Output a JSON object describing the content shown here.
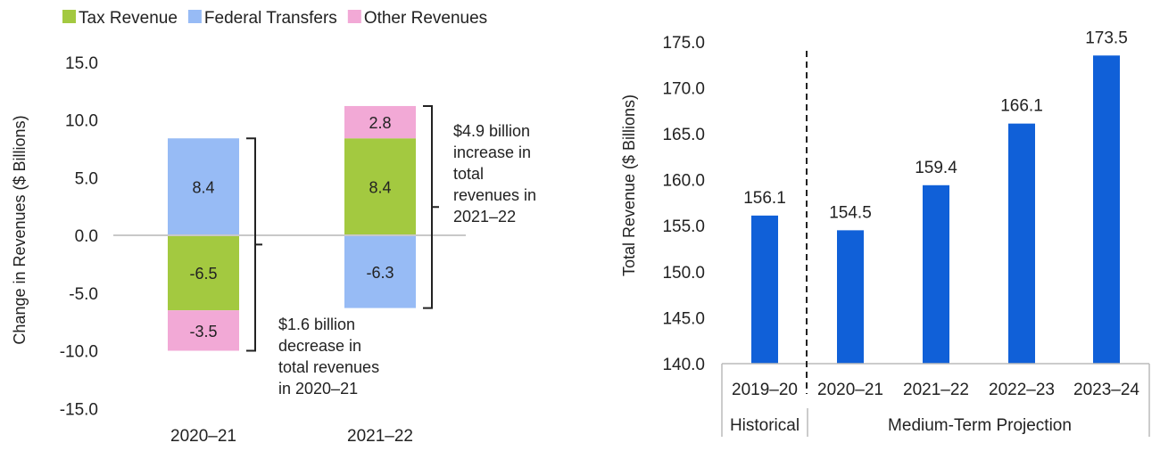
{
  "chart_data": [
    {
      "type": "bar",
      "stacked": true,
      "categories": [
        "2020–21",
        "2021–22"
      ],
      "series": [
        {
          "name": "Tax Revenue",
          "color": "#a3c940",
          "values": [
            -6.5,
            8.4
          ]
        },
        {
          "name": "Federal Transfers",
          "color": "#97bbf5",
          "values": [
            8.4,
            -6.3
          ]
        },
        {
          "name": "Other Revenues",
          "color": "#f2a9d6",
          "values": [
            -3.5,
            2.8
          ]
        }
      ],
      "ylabel": "Change in Revenues ($ Billions)",
      "ylim": [
        -15,
        15
      ],
      "yticks": [
        "15.0",
        "10.0",
        "5.0",
        "0.0",
        "-5.0",
        "-10.0",
        "-15.0"
      ],
      "legend_position": "top-left",
      "annotations": [
        {
          "category": "2020–21",
          "lines": [
            "$1.6 billion",
            "decrease in",
            "total revenues",
            "in 2020–21"
          ]
        },
        {
          "category": "2021–22",
          "lines": [
            "$4.9 billion",
            "increase in",
            "total",
            "revenues in",
            "2021–22"
          ]
        }
      ]
    },
    {
      "type": "bar",
      "categories": [
        "2019–20",
        "2020–21",
        "2021–22",
        "2022–23",
        "2023–24"
      ],
      "values": [
        156.1,
        154.5,
        159.4,
        166.1,
        173.5
      ],
      "value_labels": [
        "156.1",
        "154.5",
        "159.4",
        "166.1",
        "173.5"
      ],
      "color": "#1060d8",
      "ylabel": "Total Revenue ($ Billions)",
      "ylim": [
        140,
        175
      ],
      "yticks": [
        "175.0",
        "170.0",
        "165.0",
        "160.0",
        "155.0",
        "150.0",
        "145.0",
        "140.0"
      ],
      "groups": [
        {
          "label": "Historical",
          "categories": [
            "2019–20"
          ]
        },
        {
          "label": "Medium-Term Projection",
          "categories": [
            "2020–21",
            "2021–22",
            "2022–23",
            "2023–24"
          ]
        }
      ]
    }
  ]
}
